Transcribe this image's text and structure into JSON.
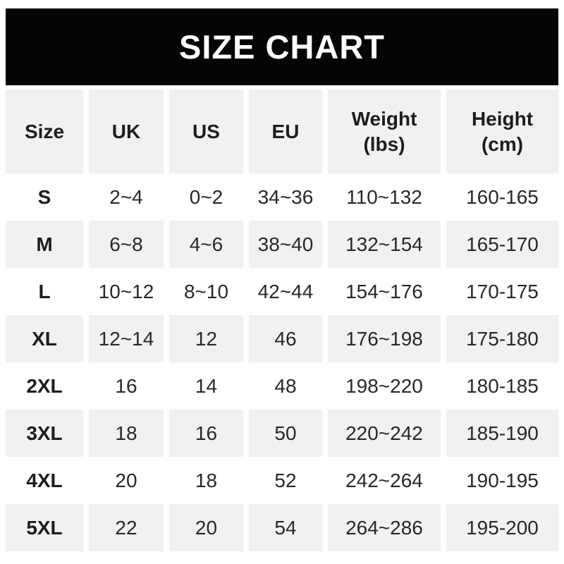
{
  "banner": {
    "title": "SIZE CHART"
  },
  "colors": {
    "banner_bg": "#050505",
    "banner_text": "#ffffff",
    "row_shaded_bg": "#f1f1f2",
    "row_plain_bg": "#ffffff",
    "text": "#26282c"
  },
  "chart_data": {
    "type": "table",
    "title": "SIZE CHART",
    "columns": [
      {
        "label": "Size",
        "label2": ""
      },
      {
        "label": "UK",
        "label2": ""
      },
      {
        "label": "US",
        "label2": ""
      },
      {
        "label": "EU",
        "label2": ""
      },
      {
        "label": "Weight",
        "label2": "(lbs)"
      },
      {
        "label": "Height",
        "label2": "(cm)"
      }
    ],
    "rows": [
      [
        "S",
        "2~4",
        "0~2",
        "34~36",
        "110~132",
        "160-165"
      ],
      [
        "M",
        "6~8",
        "4~6",
        "38~40",
        "132~154",
        "165-170"
      ],
      [
        "L",
        "10~12",
        "8~10",
        "42~44",
        "154~176",
        "170-175"
      ],
      [
        "XL",
        "12~14",
        "12",
        "46",
        "176~198",
        "175-180"
      ],
      [
        "2XL",
        "16",
        "14",
        "48",
        "198~220",
        "180-185"
      ],
      [
        "3XL",
        "18",
        "16",
        "50",
        "220~242",
        "185-190"
      ],
      [
        "4XL",
        "20",
        "18",
        "52",
        "242~264",
        "190-195"
      ],
      [
        "5XL",
        "22",
        "20",
        "54",
        "264~286",
        "195-200"
      ]
    ],
    "layout": {
      "header_shaded": true,
      "shaded_data_rows": [
        "M",
        "XL",
        "3XL",
        "5XL"
      ],
      "range_separator_weight": "~",
      "range_separator_height": "-"
    }
  }
}
